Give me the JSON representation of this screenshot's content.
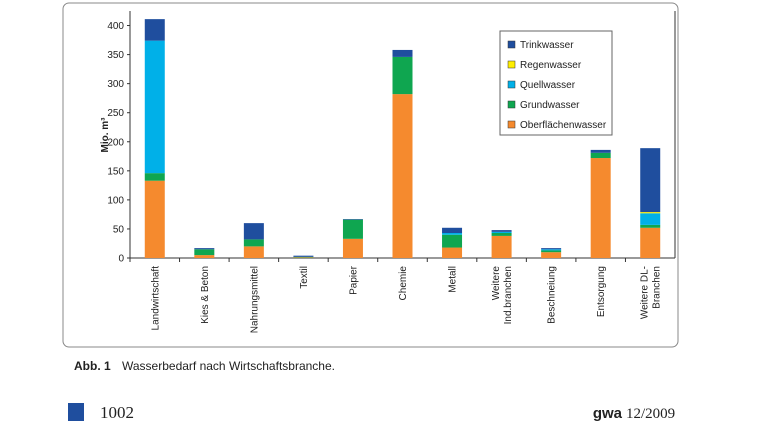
{
  "chart_data": {
    "type": "stacked-bar",
    "y_label": "Mio. m³",
    "categories": [
      "Landwirtschaft",
      "Kies & Beton",
      "Nahrungsmittel",
      "Textil",
      "Papier",
      "Chemie",
      "Metall",
      "Weitere\nInd.branchen",
      "Beschneiung",
      "Entsorgung",
      "Weitere DL-\nBranchen"
    ],
    "series": [
      {
        "name": "Oberflächenwasser",
        "color": "#f58a2e",
        "values": [
          133,
          5,
          20,
          1,
          33,
          282,
          18,
          38,
          10,
          172,
          52
        ]
      },
      {
        "name": "Grundwasser",
        "color": "#0fa650",
        "values": [
          13,
          10,
          12,
          1,
          33,
          64,
          22,
          5,
          3,
          9,
          5
        ]
      },
      {
        "name": "Quellwasser",
        "color": "#00b0e8",
        "values": [
          228,
          0,
          0,
          0,
          0,
          0,
          3,
          2,
          2,
          0,
          20
        ]
      },
      {
        "name": "Regenwasser",
        "color": "#ffee00",
        "values": [
          0,
          0,
          0,
          0,
          0,
          0,
          0,
          0,
          0,
          0,
          2
        ]
      },
      {
        "name": "Trinkwasser",
        "color": "#1f4e9e",
        "values": [
          37,
          2,
          28,
          2,
          1,
          12,
          9,
          3,
          2,
          5,
          110
        ]
      }
    ],
    "ylim": [
      0,
      425
    ],
    "yticks": [
      0,
      50,
      100,
      150,
      200,
      250,
      300,
      350,
      400
    ]
  },
  "caption": {
    "label": "Abb. 1",
    "text": "Wasserbedarf nach Wirtschaftsbranche."
  },
  "footer": {
    "page": "1002",
    "journal": "gwa",
    "issue": "12/2009"
  }
}
